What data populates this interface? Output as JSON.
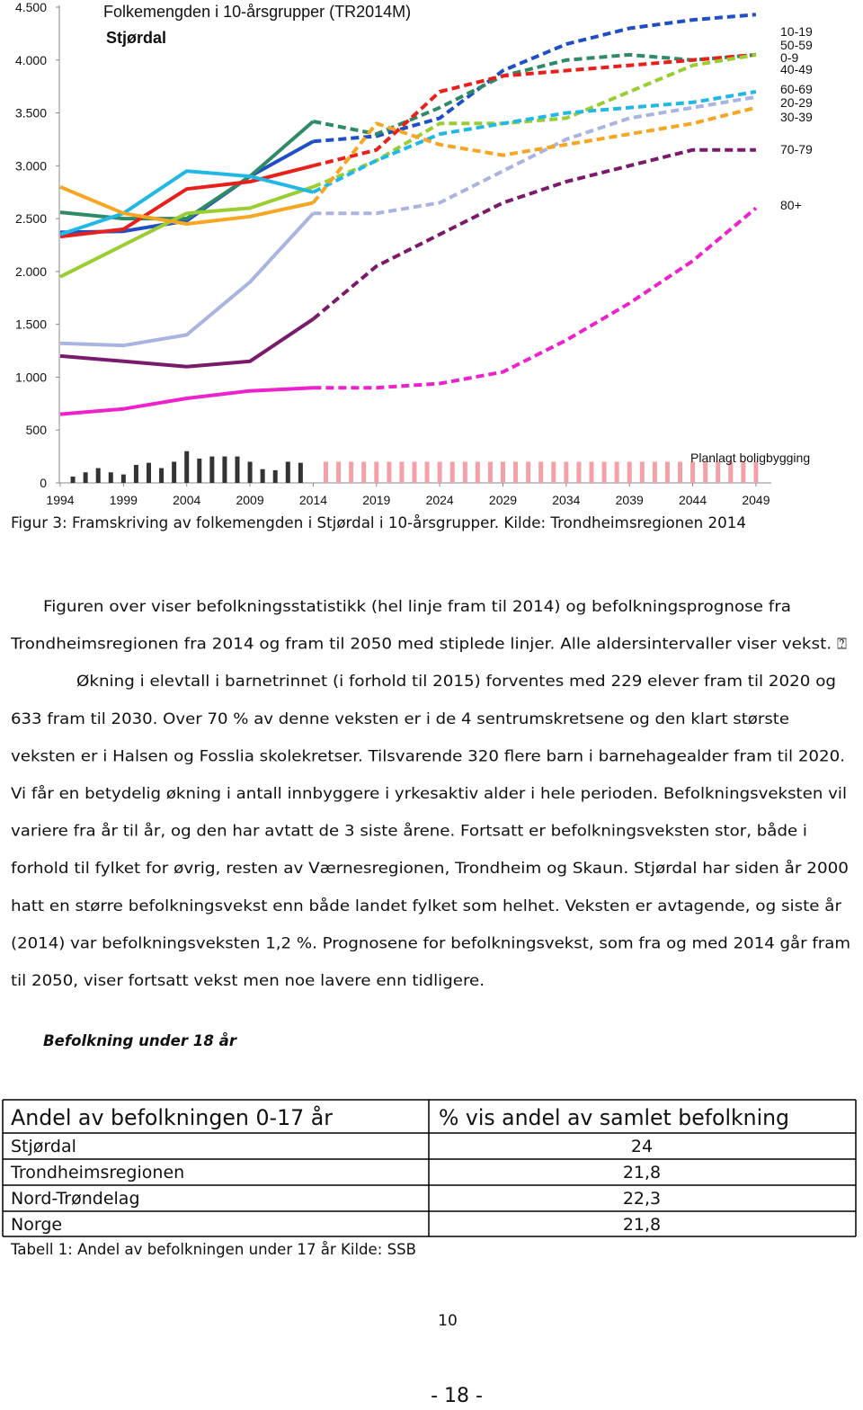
{
  "chart_data": {
    "type": "line",
    "title": "Folkemengden i 10-årsgrupper (TR2014M)",
    "subtitle": "Stjørdal",
    "x": [
      1994,
      1999,
      2004,
      2009,
      2014,
      2019,
      2024,
      2029,
      2034,
      2039,
      2044,
      2049
    ],
    "xlim": [
      1994,
      2050
    ],
    "xticks": [
      1994,
      1999,
      2004,
      2009,
      2014,
      2019,
      2024,
      2029,
      2034,
      2039,
      2044,
      2049
    ],
    "ylim": [
      0,
      4500
    ],
    "yticks": [
      0,
      500,
      {
        "value": 1000,
        "label": "1.000"
      },
      {
        "value": 1500,
        "label": "1.500"
      },
      {
        "value": 2000,
        "label": "2.000"
      },
      {
        "value": 2500,
        "label": "2.500"
      },
      {
        "value": 3000,
        "label": "3.000"
      },
      {
        "value": 3500,
        "label": "3.500"
      },
      {
        "value": 4000,
        "label": "4.000"
      },
      {
        "value": 4500,
        "label": "4.500"
      }
    ],
    "forecast_from": 2014,
    "series": [
      {
        "name": "10-19",
        "color": "#1f4fc4",
        "values": [
          2370,
          2380,
          2480,
          2900,
          3230,
          3280,
          3450,
          3900,
          4150,
          4300,
          4380,
          4430
        ]
      },
      {
        "name": "50-59",
        "color": "#2f8a66",
        "values": [
          2560,
          2500,
          2500,
          2900,
          3420,
          3300,
          3550,
          3850,
          4000,
          4050,
          4000,
          4050
        ]
      },
      {
        "name": "0-9",
        "color": "#e8201c",
        "values": [
          2330,
          2400,
          2780,
          2850,
          3000,
          3150,
          3700,
          3850,
          3900,
          3950,
          4000,
          4050
        ]
      },
      {
        "name": "40-49",
        "color": "#9acd32",
        "values": [
          1950,
          2250,
          2550,
          2600,
          2800,
          3050,
          3400,
          3400,
          3450,
          3700,
          3950,
          4050
        ]
      },
      {
        "name": "60-69",
        "color": "#a9b4e0",
        "values": [
          1320,
          1300,
          1400,
          1900,
          2550,
          2550,
          2650,
          2950,
          3250,
          3450,
          3550,
          3650
        ]
      },
      {
        "name": "20-29",
        "color": "#22b8e6",
        "values": [
          2350,
          2550,
          2950,
          2900,
          2750,
          3050,
          3300,
          3400,
          3500,
          3550,
          3600,
          3700
        ]
      },
      {
        "name": "30-39",
        "color": "#f5a623",
        "values": [
          2800,
          2550,
          2450,
          2520,
          2650,
          3400,
          3200,
          3100,
          3200,
          3300,
          3400,
          3550
        ]
      },
      {
        "name": "70-79",
        "color": "#7a1a6a",
        "values": [
          1200,
          1150,
          1100,
          1150,
          1550,
          2050,
          2350,
          2650,
          2850,
          3000,
          3150,
          3150
        ]
      },
      {
        "name": "80+",
        "color": "#ee22cc",
        "values": [
          650,
          700,
          800,
          870,
          900,
          900,
          940,
          1050,
          1350,
          1700,
          2100,
          2600
        ]
      }
    ],
    "bars": {
      "name": "Planlagt boligbygging",
      "colors": [
        "#333333",
        "#f4a0a8"
      ],
      "x": [
        1995,
        1996,
        1997,
        1998,
        1999,
        2000,
        2001,
        2002,
        2003,
        2004,
        2005,
        2006,
        2007,
        2008,
        2009,
        2010,
        2011,
        2012,
        2013,
        2015,
        2016,
        2017,
        2018,
        2019,
        2020,
        2021,
        2022,
        2023,
        2024,
        2025,
        2026,
        2027,
        2028,
        2029,
        2030,
        2031,
        2032,
        2033,
        2034,
        2035,
        2036,
        2037,
        2038,
        2039,
        2040,
        2041,
        2042,
        2043,
        2044,
        2045,
        2046,
        2047,
        2048,
        2049
      ],
      "values": [
        60,
        100,
        140,
        100,
        80,
        170,
        190,
        140,
        200,
        300,
        230,
        250,
        250,
        250,
        200,
        130,
        120,
        200,
        190,
        200,
        200,
        200,
        200,
        200,
        200,
        200,
        200,
        200,
        200,
        200,
        200,
        200,
        200,
        200,
        200,
        200,
        200,
        200,
        200,
        200,
        200,
        200,
        200,
        200,
        200,
        200,
        200,
        200,
        200,
        200,
        200,
        200,
        200,
        200
      ]
    }
  },
  "caption": "Figur 3: Framskriving av folkemengden i Stjørdal i 10-årsgrupper. Kilde: Trondheimsregionen 2014",
  "body": {
    "lines": [
      "Figuren over viser befolkningsstatistikk (hel linje fram til 2014) og befolkningsprognose fra",
      "Trondheimsregionen fra 2014 og fram til 2050 med stiplede linjer. Alle aldersintervaller viser vekst. ⍰",
      "Økning i elevtall i barnetrinnet (i forhold til 2015) forventes med 229 elever fram til 2020 og",
      "633 fram til 2030. Over 70 % av denne veksten er i de 4 sentrumskretsene og den klart største",
      "veksten er i Halsen og Fosslia skolekretser. Tilsvarende 320 flere barn i barnehagealder fram til 2020.",
      "Vi får en betydelig økning i antall innbyggere i yrkesaktiv alder i hele perioden. Befolkningsveksten vil",
      "variere fra år til år, og den har avtatt de 3 siste årene. Fortsatt er befolkningsveksten stor, både i",
      "forhold til fylket for øvrig, resten av Værnesregionen, Trondheim og Skaun. Stjørdal har siden år 2000",
      "hatt en større befolkningsvekst enn både landet fylket som helhet. Veksten er avtagende, og siste år",
      "(2014) var befolkningsveksten 1,2 %. Prognosene for befolkningsvekst, som fra og med 2014 går fram",
      "til 2050, viser fortsatt vekst men noe lavere enn tidligere."
    ]
  },
  "heading": "Befolkning under 18 år",
  "table": {
    "header": [
      "Andel av befolkningen 0-17 år",
      "% vis andel av samlet befolkning"
    ],
    "rows": [
      [
        "Stjørdal",
        "24"
      ],
      [
        "Trondheimsregionen",
        "21,8"
      ],
      [
        "Nord-Trøndelag",
        "22,3"
      ],
      [
        "Norge",
        "21,8"
      ]
    ],
    "caption": "Tabell 1: Andel av befolkningen under 17 år Kilde: SSB"
  },
  "footer": {
    "page_inner": "10",
    "page_outer": "- 18 -"
  }
}
